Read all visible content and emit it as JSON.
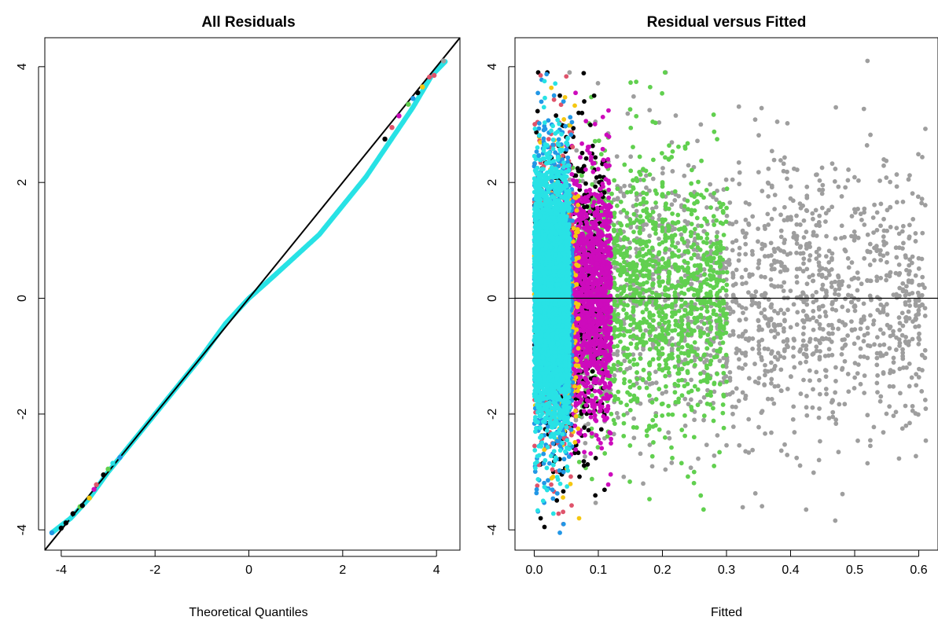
{
  "palette": {
    "black": "#000000",
    "red": "#DF536B",
    "green": "#61D04F",
    "blue": "#2297E6",
    "cyan": "#28E2E5",
    "magenta": "#CD0BBC",
    "yellow": "#F5C710",
    "gray": "#9E9E9E"
  },
  "chart_data": [
    {
      "type": "scatter",
      "subtype": "qq-plot",
      "title": "All Residuals",
      "xlabel": "Theoretical Quantiles",
      "ylabel": "",
      "xlim": [
        -4.35,
        4.5
      ],
      "ylim": [
        -4.35,
        4.5
      ],
      "x_ticks": [
        -4,
        -2,
        0,
        2,
        4
      ],
      "y_ticks": [
        -4,
        -2,
        0,
        2,
        4
      ],
      "x_tick_labels": [
        "-4",
        "-2",
        "0",
        "2",
        "4"
      ],
      "y_tick_labels": [
        "-4",
        "-2",
        "0",
        "2",
        "4"
      ],
      "reference_line": {
        "intercept": 0,
        "slope": 1
      },
      "qq_curve": [
        [
          -4.2,
          -4.05
        ],
        [
          -3.8,
          -3.8
        ],
        [
          -3.4,
          -3.45
        ],
        [
          -3.0,
          -3.0
        ],
        [
          -2.5,
          -2.5
        ],
        [
          -2.0,
          -2.0
        ],
        [
          -1.5,
          -1.5
        ],
        [
          -1.0,
          -1.0
        ],
        [
          -0.5,
          -0.44
        ],
        [
          0.0,
          0.0
        ],
        [
          0.5,
          0.36
        ],
        [
          1.0,
          0.73
        ],
        [
          1.5,
          1.1
        ],
        [
          2.0,
          1.6
        ],
        [
          2.5,
          2.1
        ],
        [
          3.0,
          2.7
        ],
        [
          3.5,
          3.3
        ],
        [
          3.9,
          3.85
        ],
        [
          4.2,
          4.1
        ]
      ],
      "points": [
        {
          "x": -4.2,
          "y": -4.05,
          "color": "blue"
        },
        {
          "x": -4.0,
          "y": -3.97,
          "color": "black"
        },
        {
          "x": -3.9,
          "y": -3.88,
          "color": "black"
        },
        {
          "x": -3.8,
          "y": -3.8,
          "color": "cyan"
        },
        {
          "x": -3.75,
          "y": -3.72,
          "color": "black"
        },
        {
          "x": -3.6,
          "y": -3.6,
          "color": "green"
        },
        {
          "x": -3.55,
          "y": -3.58,
          "color": "black"
        },
        {
          "x": -3.4,
          "y": -3.45,
          "color": "yellow"
        },
        {
          "x": -3.3,
          "y": -3.3,
          "color": "magenta"
        },
        {
          "x": -3.25,
          "y": -3.22,
          "color": "red"
        },
        {
          "x": -3.1,
          "y": -3.05,
          "color": "black"
        },
        {
          "x": -3.0,
          "y": -2.95,
          "color": "green"
        },
        {
          "x": -2.9,
          "y": -2.85,
          "color": "cyan"
        },
        {
          "x": -2.75,
          "y": -2.75,
          "color": "blue"
        },
        {
          "x": 2.9,
          "y": 2.75,
          "color": "black"
        },
        {
          "x": 3.05,
          "y": 2.95,
          "color": "red"
        },
        {
          "x": 3.2,
          "y": 3.15,
          "color": "magenta"
        },
        {
          "x": 3.4,
          "y": 3.35,
          "color": "green"
        },
        {
          "x": 3.5,
          "y": 3.45,
          "color": "blue"
        },
        {
          "x": 3.6,
          "y": 3.55,
          "color": "black"
        },
        {
          "x": 3.7,
          "y": 3.65,
          "color": "yellow"
        },
        {
          "x": 3.85,
          "y": 3.82,
          "color": "red"
        },
        {
          "x": 3.95,
          "y": 3.85,
          "color": "red"
        },
        {
          "x": 4.15,
          "y": 4.1,
          "color": "gray"
        }
      ]
    },
    {
      "type": "scatter",
      "title": "Residual versus Fitted",
      "xlabel": "Fitted",
      "ylabel": "",
      "xlim": [
        -0.03,
        0.63
      ],
      "ylim": [
        -4.35,
        4.5
      ],
      "x_ticks": [
        0.0,
        0.1,
        0.2,
        0.3,
        0.4,
        0.5,
        0.6
      ],
      "y_ticks": [
        -4,
        -2,
        0,
        2,
        4
      ],
      "x_tick_labels": [
        "0.0",
        "0.1",
        "0.2",
        "0.3",
        "0.4",
        "0.5",
        "0.6"
      ],
      "y_tick_labels": [
        "-4",
        "-2",
        "0",
        "2",
        "4"
      ],
      "reference_line": {
        "y": 0
      },
      "groups": [
        {
          "color": "gray",
          "x_range": [
            0.05,
            0.61
          ],
          "residual_sd": 1.2,
          "count": 1700,
          "seed": 11
        },
        {
          "color": "green",
          "x_range": [
            0.05,
            0.3
          ],
          "residual_sd": 1.15,
          "count": 1500,
          "seed": 23
        },
        {
          "color": "black",
          "x_range": [
            0.0,
            0.11
          ],
          "residual_sd": 1.4,
          "count": 650,
          "seed": 37
        },
        {
          "color": "magenta",
          "x_range": [
            0.045,
            0.12
          ],
          "residual_sd": 1.0,
          "count": 1600,
          "seed": 41
        },
        {
          "color": "red",
          "x_range": [
            0.0,
            0.06
          ],
          "residual_sd": 1.4,
          "count": 450,
          "seed": 53
        },
        {
          "color": "yellow",
          "x_range": [
            0.0,
            0.07
          ],
          "residual_sd": 1.4,
          "count": 250,
          "seed": 61
        },
        {
          "color": "blue",
          "x_range": [
            0.0,
            0.06
          ],
          "residual_sd": 1.3,
          "count": 1100,
          "seed": 71
        },
        {
          "color": "cyan",
          "x_range": [
            0.0,
            0.055
          ],
          "residual_sd": 1.05,
          "count": 3600,
          "seed": 83
        }
      ],
      "extreme_points": [
        {
          "x": 0.52,
          "y": 4.1,
          "color": "gray"
        },
        {
          "x": 0.01,
          "y": 3.85,
          "color": "red"
        },
        {
          "x": 0.016,
          "y": 3.75,
          "color": "cyan"
        },
        {
          "x": 0.04,
          "y": 3.5,
          "color": "black"
        },
        {
          "x": 0.18,
          "y": 3.25,
          "color": "gray"
        },
        {
          "x": 0.52,
          "y": -2.85,
          "color": "gray"
        },
        {
          "x": 0.01,
          "y": -3.8,
          "color": "black"
        },
        {
          "x": 0.04,
          "y": -4.05,
          "color": "blue"
        },
        {
          "x": 0.07,
          "y": -3.8,
          "color": "yellow"
        },
        {
          "x": 0.016,
          "y": -3.95,
          "color": "black"
        },
        {
          "x": 0.61,
          "y": -0.9,
          "color": "gray"
        },
        {
          "x": 0.17,
          "y": -3.2,
          "color": "gray"
        }
      ]
    }
  ]
}
